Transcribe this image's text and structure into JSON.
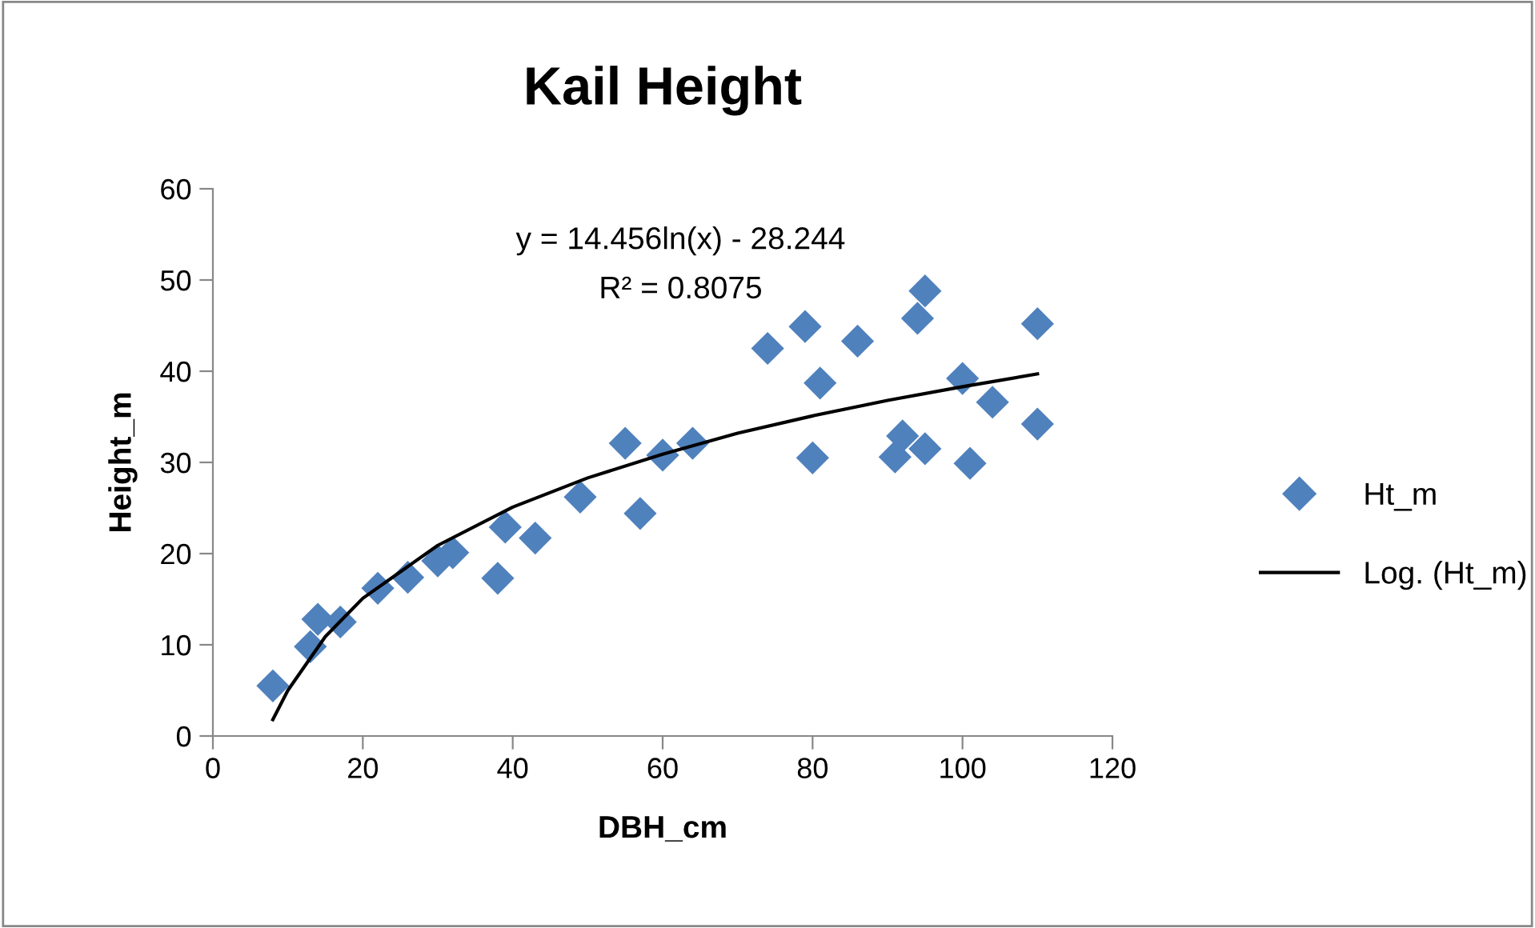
{
  "chart_data": {
    "type": "scatter",
    "title": "Kail Height",
    "xlabel": "DBH_cm",
    "ylabel": "Height_m",
    "xlim": [
      0,
      120
    ],
    "xticks": [
      0,
      20,
      40,
      60,
      80,
      100,
      120
    ],
    "ylim": [
      0,
      60
    ],
    "yticks": [
      0,
      10,
      20,
      30,
      40,
      50,
      60
    ],
    "grid": false,
    "legend": "right",
    "annotations": [
      "y = 14.456ln(x) - 28.244",
      "R² = 0.8075"
    ],
    "series": [
      {
        "name": "Ht_m",
        "marker": "diamond",
        "color": "#4f81bd",
        "x": [
          8,
          13,
          14,
          17,
          22,
          26,
          30,
          32,
          38,
          39,
          43,
          49,
          55,
          57,
          60,
          64,
          74,
          79,
          80,
          81,
          86,
          91,
          92,
          94,
          95,
          95,
          100,
          101,
          104,
          110,
          110
        ],
        "values": [
          5.5,
          9.8,
          12.8,
          12.5,
          16.2,
          17.4,
          19.2,
          20.1,
          17.3,
          22.9,
          21.7,
          26.2,
          32.1,
          24.4,
          30.8,
          32.1,
          42.5,
          44.9,
          30.5,
          38.7,
          43.3,
          30.6,
          32.9,
          45.8,
          48.8,
          31.5,
          39.2,
          29.9,
          36.6,
          45.2,
          34.2
        ]
      },
      {
        "name": "Log. (Ht_m)",
        "type": "line",
        "color": "#000000",
        "x": [
          8,
          10,
          15,
          20,
          30,
          40,
          50,
          60,
          70,
          80,
          90,
          100,
          110
        ],
        "values": [
          1.8,
          5.0,
          10.9,
          15.1,
          20.9,
          25.1,
          28.3,
          30.9,
          33.2,
          35.1,
          36.8,
          38.3,
          39.7
        ]
      }
    ]
  }
}
